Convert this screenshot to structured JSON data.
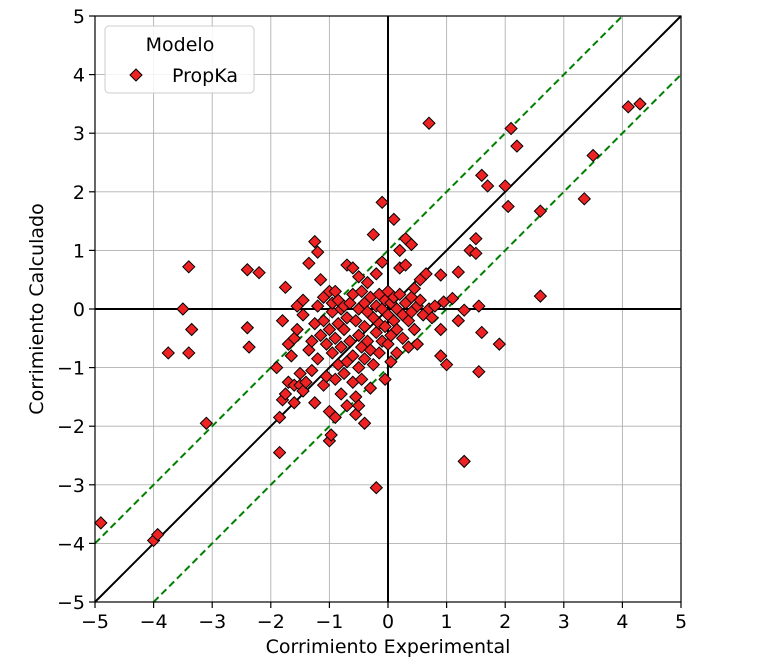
{
  "chart_data": {
    "type": "scatter",
    "xlabel": "Corrimiento Experimental",
    "ylabel": "Corrimiento Calculado",
    "xlim": [
      -5,
      5
    ],
    "ylim": [
      -5,
      5
    ],
    "xticks": [
      "−5",
      "−4",
      "−3",
      "−2",
      "−1",
      "0",
      "1",
      "2",
      "3",
      "4",
      "5"
    ],
    "yticks": [
      "−5",
      "−4",
      "−3",
      "−2",
      "−1",
      "0",
      "1",
      "2",
      "3",
      "4",
      "5"
    ],
    "grid": true,
    "legend": {
      "title": "Modelo",
      "position": "top-left",
      "entries": [
        "PropKa"
      ]
    },
    "reference_lines": [
      {
        "kind": "identity",
        "offset": 0,
        "color": "#000000",
        "style": "solid"
      },
      {
        "kind": "identity",
        "offset": 1,
        "color": "#008000",
        "style": "dashed"
      },
      {
        "kind": "identity",
        "offset": -1,
        "color": "#008000",
        "style": "dashed"
      },
      {
        "kind": "axis-zero",
        "color": "#000000",
        "style": "solid"
      }
    ],
    "marker": {
      "shape": "diamond",
      "fill": "#ee2222",
      "edge": "#000000"
    },
    "series": [
      {
        "name": "PropKa",
        "points": [
          [
            -4.9,
            -3.65
          ],
          [
            -4.0,
            -3.95
          ],
          [
            -3.93,
            -3.85
          ],
          [
            -3.75,
            -0.75
          ],
          [
            -3.5,
            0.0
          ],
          [
            -3.4,
            0.72
          ],
          [
            -3.4,
            -0.75
          ],
          [
            -3.35,
            -0.35
          ],
          [
            -3.1,
            -1.95
          ],
          [
            -2.4,
            0.67
          ],
          [
            -2.4,
            -0.32
          ],
          [
            -2.37,
            -0.65
          ],
          [
            -2.2,
            0.62
          ],
          [
            -1.9,
            -1.0
          ],
          [
            -1.85,
            -1.85
          ],
          [
            -1.85,
            -2.45
          ],
          [
            -1.8,
            -0.2
          ],
          [
            -1.8,
            -1.55
          ],
          [
            -1.75,
            -1.45
          ],
          [
            -1.75,
            0.37
          ],
          [
            -1.7,
            -1.25
          ],
          [
            -1.7,
            -0.6
          ],
          [
            -1.65,
            -0.8
          ],
          [
            -1.6,
            -1.3
          ],
          [
            -1.6,
            -0.5
          ],
          [
            -1.6,
            -1.6
          ],
          [
            -1.55,
            -0.35
          ],
          [
            -1.55,
            0.05
          ],
          [
            -1.5,
            -1.3
          ],
          [
            -1.5,
            -1.1
          ],
          [
            -1.45,
            0.15
          ],
          [
            -1.45,
            -0.1
          ],
          [
            -1.45,
            -1.4
          ],
          [
            -1.4,
            -1.25
          ],
          [
            -1.35,
            -0.7
          ],
          [
            -1.35,
            0.78
          ],
          [
            -1.3,
            -0.55
          ],
          [
            -1.3,
            -1.05
          ],
          [
            -1.25,
            1.15
          ],
          [
            -1.25,
            -0.25
          ],
          [
            -1.25,
            -1.6
          ],
          [
            -1.2,
            0.05
          ],
          [
            -1.2,
            -0.85
          ],
          [
            -1.2,
            0.97
          ],
          [
            -1.15,
            0.5
          ],
          [
            -1.15,
            -0.45
          ],
          [
            -1.1,
            -1.3
          ],
          [
            -1.1,
            -0.2
          ],
          [
            -1.1,
            0.2
          ],
          [
            -1.05,
            -0.6
          ],
          [
            -1.05,
            -1.15
          ],
          [
            -1.0,
            0.3
          ],
          [
            -1.0,
            -0.35
          ],
          [
            -1.0,
            -2.25
          ],
          [
            -1.0,
            -1.75
          ],
          [
            -0.97,
            -2.15
          ],
          [
            -0.95,
            -0.05
          ],
          [
            -0.95,
            0.1
          ],
          [
            -0.95,
            -0.75
          ],
          [
            -0.9,
            -0.5
          ],
          [
            -0.9,
            0.3
          ],
          [
            -0.9,
            -1.2
          ],
          [
            -0.9,
            -1.85
          ],
          [
            -0.85,
            -0.25
          ],
          [
            -0.85,
            0.15
          ],
          [
            -0.85,
            -0.95
          ],
          [
            -0.8,
            0.0
          ],
          [
            -0.8,
            -1.45
          ],
          [
            -0.8,
            -0.65
          ],
          [
            -0.75,
            0.05
          ],
          [
            -0.75,
            -0.35
          ],
          [
            -0.75,
            -1.1
          ],
          [
            -0.7,
            0.75
          ],
          [
            -0.7,
            -0.15
          ],
          [
            -0.7,
            -1.65
          ],
          [
            -0.7,
            -0.9
          ],
          [
            -0.65,
            0.1
          ],
          [
            -0.65,
            -0.55
          ],
          [
            -0.6,
            -1.25
          ],
          [
            -0.6,
            0.25
          ],
          [
            -0.6,
            -0.8
          ],
          [
            -0.6,
            0.7
          ],
          [
            -0.55,
            -0.2
          ],
          [
            -0.55,
            -1.8
          ],
          [
            -0.55,
            -1.5
          ],
          [
            -0.5,
            0.0
          ],
          [
            -0.5,
            -0.45
          ],
          [
            -0.5,
            0.55
          ],
          [
            -0.5,
            -1.0
          ],
          [
            -0.5,
            -1.65
          ],
          [
            -0.45,
            0.3
          ],
          [
            -0.45,
            -0.65
          ],
          [
            -0.45,
            -1.2
          ],
          [
            -0.4,
            0.1
          ],
          [
            -0.4,
            -0.3
          ],
          [
            -0.4,
            -0.85
          ],
          [
            -0.4,
            -1.95
          ],
          [
            -0.35,
            0.45
          ],
          [
            -0.35,
            -0.05
          ],
          [
            -0.35,
            -0.55
          ],
          [
            -0.3,
            0.2
          ],
          [
            -0.3,
            -1.35
          ],
          [
            -0.3,
            -0.7
          ],
          [
            -0.25,
            1.27
          ],
          [
            -0.25,
            -0.15
          ],
          [
            -0.25,
            -0.95
          ],
          [
            -0.2,
            0.05
          ],
          [
            -0.2,
            -0.4
          ],
          [
            -0.2,
            0.6
          ],
          [
            -0.2,
            -3.05
          ],
          [
            -0.15,
            0.25
          ],
          [
            -0.15,
            -0.25
          ],
          [
            -0.15,
            -0.75
          ],
          [
            -0.1,
            1.82
          ],
          [
            -0.1,
            0.0
          ],
          [
            -0.1,
            -0.55
          ],
          [
            -0.1,
            0.8
          ],
          [
            -0.05,
            0.15
          ],
          [
            -0.05,
            -0.3
          ],
          [
            -0.05,
            -1.2
          ],
          [
            0.0,
            0.3
          ],
          [
            0.0,
            -0.1
          ],
          [
            0.0,
            -0.6
          ],
          [
            0.05,
            0.1
          ],
          [
            0.05,
            -0.45
          ],
          [
            0.05,
            -0.9
          ],
          [
            0.1,
            1.53
          ],
          [
            0.1,
            0.2
          ],
          [
            0.1,
            -0.2
          ],
          [
            0.15,
            0.0
          ],
          [
            0.15,
            -0.35
          ],
          [
            0.15,
            -0.75
          ],
          [
            0.2,
            1.0
          ],
          [
            0.2,
            0.7
          ],
          [
            0.2,
            0.25
          ],
          [
            0.25,
            -0.1
          ],
          [
            0.25,
            -0.5
          ],
          [
            0.3,
            0.1
          ],
          [
            0.3,
            1.2
          ],
          [
            0.3,
            0.75
          ],
          [
            0.35,
            -0.2
          ],
          [
            0.35,
            -0.65
          ],
          [
            0.4,
            0.2
          ],
          [
            0.4,
            1.1
          ],
          [
            0.4,
            -0.05
          ],
          [
            0.45,
            0.35
          ],
          [
            0.45,
            -0.35
          ],
          [
            0.5,
            0.05
          ],
          [
            0.5,
            -0.6
          ],
          [
            0.55,
            0.15
          ],
          [
            0.55,
            0.5
          ],
          [
            0.6,
            -0.1
          ],
          [
            0.65,
            0.6
          ],
          [
            0.7,
            3.17
          ],
          [
            0.7,
            0.0
          ],
          [
            0.75,
            -0.15
          ],
          [
            0.8,
            0.05
          ],
          [
            0.9,
            0.58
          ],
          [
            0.9,
            -0.35
          ],
          [
            0.9,
            -0.8
          ],
          [
            0.95,
            0.12
          ],
          [
            1.0,
            -0.95
          ],
          [
            1.1,
            0.18
          ],
          [
            1.2,
            0.63
          ],
          [
            1.2,
            -0.2
          ],
          [
            1.3,
            -2.6
          ],
          [
            1.3,
            -0.02
          ],
          [
            1.4,
            1.0
          ],
          [
            1.5,
            0.95
          ],
          [
            1.5,
            1.2
          ],
          [
            1.55,
            0.05
          ],
          [
            1.55,
            -1.07
          ],
          [
            1.6,
            2.28
          ],
          [
            1.6,
            -0.4
          ],
          [
            1.7,
            2.1
          ],
          [
            1.9,
            -0.6
          ],
          [
            2.0,
            2.1
          ],
          [
            2.05,
            1.75
          ],
          [
            2.1,
            3.08
          ],
          [
            2.2,
            2.78
          ],
          [
            2.6,
            1.67
          ],
          [
            2.6,
            0.22
          ],
          [
            3.35,
            1.88
          ],
          [
            3.5,
            2.62
          ],
          [
            4.1,
            3.45
          ],
          [
            4.3,
            3.5
          ]
        ]
      }
    ]
  }
}
